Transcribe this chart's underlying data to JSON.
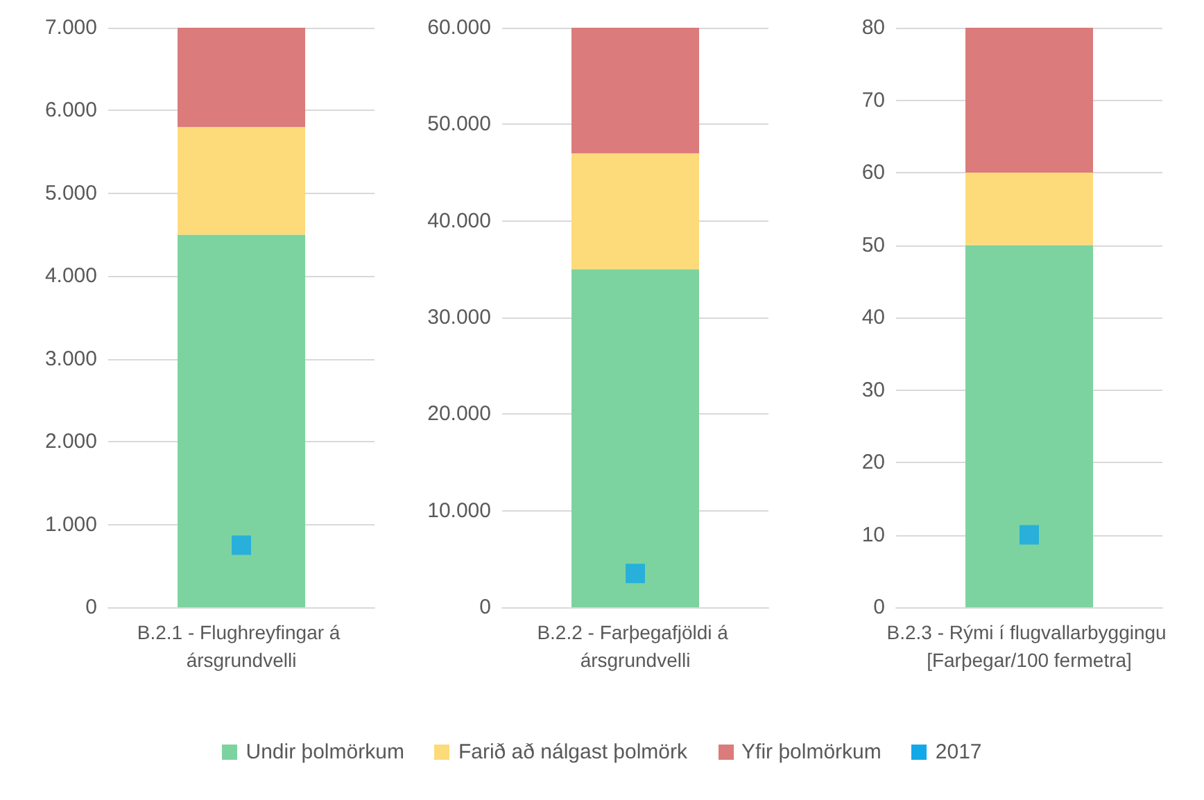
{
  "chart_data": [
    {
      "type": "bar",
      "stacked": true,
      "categories": [
        "B.2.1 - Flughreyfingar á ársgrundvelli"
      ],
      "ylim": [
        0,
        7000
      ],
      "yticks": [
        {
          "value": 0,
          "label": "0"
        },
        {
          "value": 1000,
          "label": "1.000"
        },
        {
          "value": 2000,
          "label": "2.000"
        },
        {
          "value": 3000,
          "label": "3.000"
        },
        {
          "value": 4000,
          "label": "4.000"
        },
        {
          "value": 5000,
          "label": "5.000"
        },
        {
          "value": 6000,
          "label": "6.000"
        },
        {
          "value": 7000,
          "label": "7.000"
        }
      ],
      "grid": "y",
      "legend": "bottom",
      "series": [
        {
          "name": "Undir þolmörkum",
          "color": "#7dd3a0",
          "values": [
            4500
          ]
        },
        {
          "name": "Farið að nálgast þolmörk",
          "color": "#fedb7a",
          "values": [
            1300
          ]
        },
        {
          "name": "Yfir þolmörkum",
          "color": "#db7b7b",
          "values": [
            1200
          ]
        },
        {
          "name": "2017",
          "type": "scatter",
          "marker": "square",
          "color": "#13a8e8",
          "values": [
            750
          ]
        }
      ]
    },
    {
      "type": "bar",
      "stacked": true,
      "categories": [
        "B.2.2 - Farþegafjöldi á ársgrundvelli"
      ],
      "ylim": [
        0,
        60000
      ],
      "yticks": [
        {
          "value": 0,
          "label": "0"
        },
        {
          "value": 10000,
          "label": "10.000"
        },
        {
          "value": 20000,
          "label": "20.000"
        },
        {
          "value": 30000,
          "label": "30.000"
        },
        {
          "value": 40000,
          "label": "40.000"
        },
        {
          "value": 50000,
          "label": "50.000"
        },
        {
          "value": 60000,
          "label": "60.000"
        }
      ],
      "grid": "y",
      "series": [
        {
          "color": "#7dd3a0",
          "values": [
            35000
          ]
        },
        {
          "color": "#fedb7a",
          "values": [
            12000
          ]
        },
        {
          "color": "#db7b7b",
          "values": [
            13000
          ]
        },
        {
          "type": "scatter",
          "marker": "square",
          "color": "#13a8e8",
          "values": [
            3500
          ]
        }
      ]
    },
    {
      "type": "bar",
      "stacked": true,
      "categories": [
        "B.2.3 - Rými í flugvallarbyggingu [Farþegar/100 fermetra]"
      ],
      "ylim": [
        0,
        80
      ],
      "yticks": [
        0,
        10,
        20,
        30,
        40,
        50,
        60,
        70,
        80
      ],
      "grid": "y",
      "series": [
        {
          "color": "#7dd3a0",
          "values": [
            50
          ]
        },
        {
          "color": "#fedb7a",
          "values": [
            10
          ]
        },
        {
          "color": "#db7b7b",
          "values": [
            20
          ]
        },
        {
          "type": "scatter",
          "marker": "square",
          "color": "#13a8e8",
          "values": [
            10
          ]
        }
      ]
    }
  ]
}
